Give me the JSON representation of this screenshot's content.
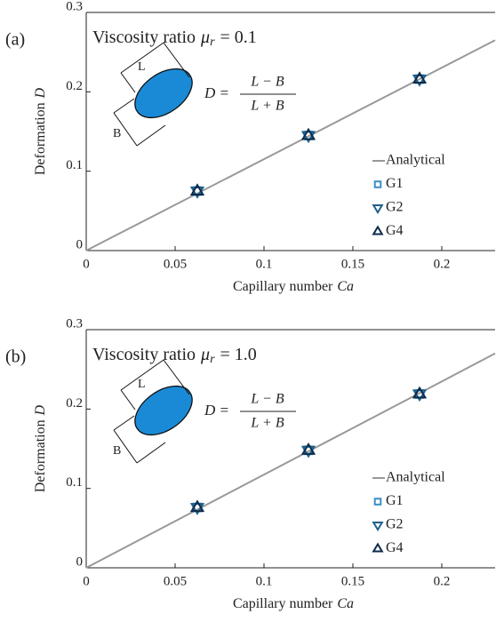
{
  "chart_data": [
    {
      "type": "line",
      "panel_label": "(a)",
      "title": {
        "text": "Viscosity ratio",
        "symbol": "μ",
        "subscript": "r",
        "value": "= 0.1"
      },
      "xlabel": {
        "text": "Capillary number",
        "symbol": "Ca"
      },
      "ylabel": {
        "text": "Deformation",
        "symbol": "D"
      },
      "annotations": {
        "length": "L",
        "breadth": "B",
        "lhs": "D =",
        "numerator": "L − B",
        "denominator": "L + B"
      },
      "xlim": [
        0,
        0.23
      ],
      "ylim": [
        0,
        0.3
      ],
      "xticks": [
        0,
        0.05,
        0.1,
        0.15,
        0.2
      ],
      "yticks": [
        0,
        0.1,
        0.2,
        0.3
      ],
      "series": [
        {
          "name": "Analytical",
          "style": "line",
          "color": "#999999",
          "x": [
            0,
            0.23
          ],
          "values": [
            0,
            0.265
          ]
        },
        {
          "name": "G1",
          "style": "square",
          "color": "#3a8fc7",
          "x": [
            0.0625,
            0.125,
            0.1875
          ],
          "values": [
            0.075,
            0.145,
            0.216
          ]
        },
        {
          "name": "G2",
          "style": "triangle-down",
          "color": "#1f5f8b",
          "x": [
            0.0625,
            0.125,
            0.1875
          ],
          "values": [
            0.075,
            0.145,
            0.216
          ]
        },
        {
          "name": "G4",
          "style": "triangle-up",
          "color": "#0d2a4a",
          "x": [
            0.0625,
            0.125,
            0.1875
          ],
          "values": [
            0.075,
            0.145,
            0.216
          ]
        }
      ]
    },
    {
      "type": "line",
      "panel_label": "(b)",
      "title": {
        "text": "Viscosity ratio",
        "symbol": "μ",
        "subscript": "r",
        "value": "= 1.0"
      },
      "xlabel": {
        "text": "Capillary number",
        "symbol": "Ca"
      },
      "ylabel": {
        "text": "Deformation",
        "symbol": "D"
      },
      "annotations": {
        "length": "L",
        "breadth": "B",
        "lhs": "D =",
        "numerator": "L − B",
        "denominator": "L + B"
      },
      "xlim": [
        0,
        0.23
      ],
      "ylim": [
        0,
        0.3
      ],
      "xticks": [
        0,
        0.05,
        0.1,
        0.15,
        0.2
      ],
      "yticks": [
        0,
        0.1,
        0.2,
        0.3
      ],
      "series": [
        {
          "name": "Analytical",
          "style": "line",
          "color": "#999999",
          "x": [
            0,
            0.23
          ],
          "values": [
            0,
            0.27
          ]
        },
        {
          "name": "G1",
          "style": "square",
          "color": "#3a8fc7",
          "x": [
            0.0625,
            0.125,
            0.1875
          ],
          "values": [
            0.076,
            0.148,
            0.219
          ]
        },
        {
          "name": "G2",
          "style": "triangle-down",
          "color": "#1f5f8b",
          "x": [
            0.0625,
            0.125,
            0.1875
          ],
          "values": [
            0.076,
            0.148,
            0.219
          ]
        },
        {
          "name": "G4",
          "style": "triangle-up",
          "color": "#0d2a4a",
          "x": [
            0.0625,
            0.125,
            0.1875
          ],
          "values": [
            0.076,
            0.148,
            0.219
          ]
        }
      ]
    }
  ]
}
